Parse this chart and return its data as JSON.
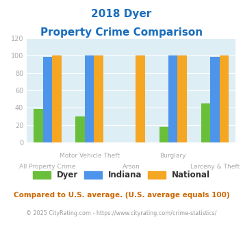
{
  "title_line1": "2018 Dyer",
  "title_line2": "Property Crime Comparison",
  "categories": [
    "All Property Crime",
    "Motor Vehicle Theft",
    "Arson",
    "Burglary",
    "Larceny & Theft"
  ],
  "series": {
    "Dyer": [
      39,
      30,
      0,
      18,
      45
    ],
    "Indiana": [
      99,
      100,
      0,
      100,
      99
    ],
    "National": [
      100,
      100,
      100,
      100,
      100
    ]
  },
  "colors": {
    "Dyer": "#6abf3a",
    "Indiana": "#4d94eb",
    "National": "#f5a623"
  },
  "ylim": [
    0,
    120
  ],
  "yticks": [
    0,
    20,
    40,
    60,
    80,
    100,
    120
  ],
  "title_color": "#1a6ebd",
  "axis_bg_color": "#ddeef5",
  "fig_bg_color": "#ffffff",
  "grid_color": "#ffffff",
  "footnote1": "Compared to U.S. average. (U.S. average equals 100)",
  "footnote2": "© 2025 CityRating.com - https://www.cityrating.com/crime-statistics/",
  "footnote1_color": "#cc6600",
  "footnote2_color": "#999999",
  "tick_color": "#aaaaaa",
  "bar_width": 0.22
}
